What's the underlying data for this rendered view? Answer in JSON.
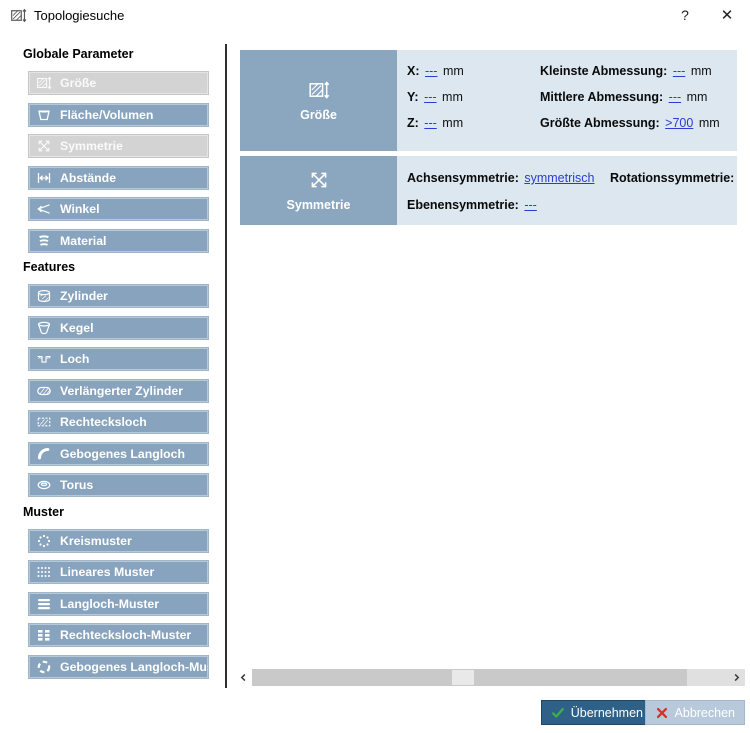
{
  "window": {
    "title": "Topologiesuche",
    "icon": "groesse-icon",
    "help_label": "?",
    "close_label": "✕"
  },
  "sidebar": {
    "groups": [
      {
        "heading": "Globale Parameter",
        "items": [
          {
            "label": "Größe",
            "icon": "groesse-icon",
            "state": "disabled"
          },
          {
            "label": "Fläche/Volumen",
            "icon": "flaeche-volumen-icon",
            "state": "enabled"
          },
          {
            "label": "Symmetrie",
            "icon": "symmetrie-icon",
            "state": "disabled"
          },
          {
            "label": "Abstände",
            "icon": "abstaende-icon",
            "state": "enabled"
          },
          {
            "label": "Winkel",
            "icon": "winkel-icon",
            "state": "enabled"
          },
          {
            "label": "Material",
            "icon": "material-icon",
            "state": "enabled"
          }
        ]
      },
      {
        "heading": "Features",
        "items": [
          {
            "label": "Zylinder",
            "icon": "zylinder-icon",
            "state": "enabled"
          },
          {
            "label": "Kegel",
            "icon": "kegel-icon",
            "state": "enabled"
          },
          {
            "label": "Loch",
            "icon": "loch-icon",
            "state": "enabled"
          },
          {
            "label": "Verlängerter Zylinder",
            "icon": "verlaengerter-zylinder-icon",
            "state": "enabled"
          },
          {
            "label": "Rechtecksloch",
            "icon": "rechtecksloch-icon",
            "state": "enabled"
          },
          {
            "label": "Gebogenes Langloch",
            "icon": "gebogenes-langloch-icon",
            "state": "enabled"
          },
          {
            "label": "Torus",
            "icon": "torus-icon",
            "state": "enabled"
          }
        ]
      },
      {
        "heading": "Muster",
        "items": [
          {
            "label": "Kreismuster",
            "icon": "kreismuster-icon",
            "state": "enabled"
          },
          {
            "label": "Lineares Muster",
            "icon": "lineares-muster-icon",
            "state": "enabled"
          },
          {
            "label": "Langloch-Muster",
            "icon": "langloch-muster-icon",
            "state": "enabled"
          },
          {
            "label": "Rechtecksloch-Muster",
            "icon": "rechtecksloch-muster-icon",
            "state": "enabled"
          },
          {
            "label": "Gebogenes Langloch-Muster",
            "icon": "gebogenes-langloch-muster-icon",
            "state": "enabled"
          }
        ]
      }
    ]
  },
  "panels": {
    "groesse": {
      "title": "Größe",
      "icon": "groesse-icon",
      "fields": [
        {
          "label": "X:",
          "value": "---",
          "unit": "mm"
        },
        {
          "label": "Y:",
          "value": "---",
          "unit": "mm"
        },
        {
          "label": "Z:",
          "value": "---",
          "unit": "mm"
        },
        {
          "label": "Kleinste Abmessung:",
          "value": "---",
          "unit": "mm"
        },
        {
          "label": "Mittlere Abmessung:",
          "value": "---",
          "unit": "mm"
        },
        {
          "label": "Größte Abmessung:",
          "value": ">700",
          "unit": "mm"
        }
      ]
    },
    "symmetrie": {
      "title": "Symmetrie",
      "icon": "symmetrie-icon",
      "fields": [
        {
          "label": "Achsensymmetrie:",
          "value": "symmetrisch"
        },
        {
          "label": "Ebenensymmetrie:",
          "value": "---"
        },
        {
          "label": "Rotationssymmetrie:",
          "value": "---"
        }
      ]
    }
  },
  "scrollbar": {
    "left_icon": "chevron-left-icon",
    "right_icon": "chevron-right-icon"
  },
  "footer": {
    "apply_label": "Übernehmen",
    "apply_icon": "check-icon",
    "cancel_label": "Abbrechen",
    "cancel_icon": "cross-icon"
  },
  "colors": {
    "button_blue": "#87a3bd",
    "button_disabled": "#d3d3d3",
    "panel_header_blue": "#8ba6bf",
    "panel_body_blue": "#dce7ef",
    "link_blue": "#2b3cd4",
    "apply_blue": "#2f6087",
    "cancel_blue": "#b7c9da",
    "check_green": "#3fae49",
    "cross_red": "#d93025"
  }
}
